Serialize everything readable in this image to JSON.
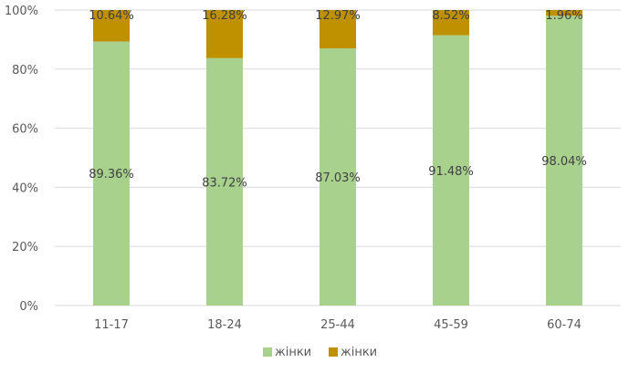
{
  "chart_data": {
    "type": "bar",
    "stacked": true,
    "categories": [
      "11-17",
      "18-24",
      "25-44",
      "45-59",
      "60-74"
    ],
    "series": [
      {
        "name": "жінки",
        "color": "#a9d18e",
        "values": [
          89.36,
          83.72,
          87.03,
          91.48,
          98.04
        ],
        "labels": [
          "89.36%",
          "83.72%",
          "87.03%",
          "91.48%",
          "98.04%"
        ]
      },
      {
        "name": "жінки",
        "color": "#bf9000",
        "values": [
          10.64,
          16.28,
          12.97,
          8.52,
          1.96
        ],
        "labels": [
          "10.64%",
          "16.28%",
          "12.97%",
          "8.52%",
          "1.96%"
        ]
      }
    ],
    "ylim": [
      0,
      100
    ],
    "y_ticks": [
      "0%",
      "20%",
      "40%",
      "60%",
      "80%",
      "100%"
    ],
    "grid": true,
    "legend_position": "bottom"
  }
}
